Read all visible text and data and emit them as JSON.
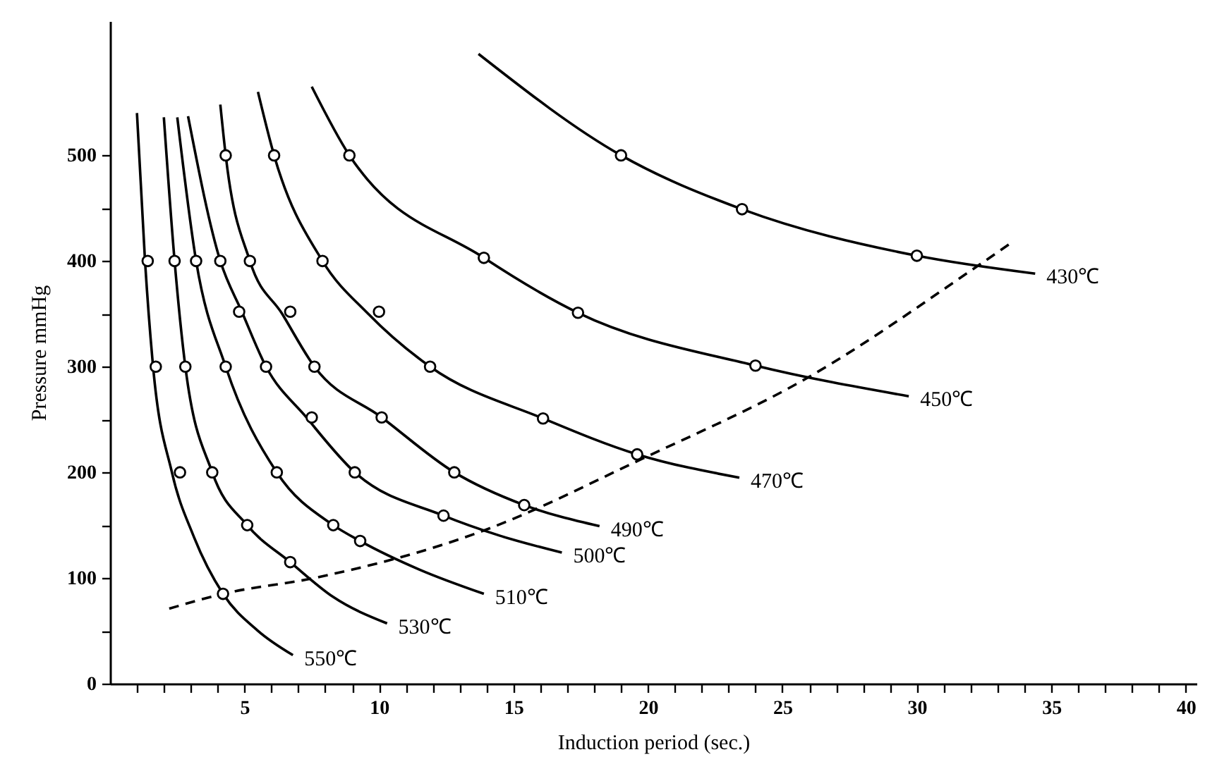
{
  "chart_data": {
    "type": "line",
    "xlabel": "Induction period (sec.)",
    "ylabel": "Pressure mmHg",
    "xlim": [
      0,
      40.4
    ],
    "ylim": [
      0,
      627
    ],
    "xticks": [
      {
        "value": 1,
        "label": null
      },
      {
        "value": 2,
        "label": null
      },
      {
        "value": 3,
        "label": null
      },
      {
        "value": 4,
        "label": null
      },
      5,
      {
        "value": 6,
        "label": null
      },
      {
        "value": 7,
        "label": null
      },
      {
        "value": 8,
        "label": null
      },
      {
        "value": 9,
        "label": null
      },
      10,
      {
        "value": 11,
        "label": null
      },
      {
        "value": 12,
        "label": null
      },
      {
        "value": 13,
        "label": null
      },
      {
        "value": 14,
        "label": null
      },
      15,
      {
        "value": 16,
        "label": null
      },
      {
        "value": 17,
        "label": null
      },
      {
        "value": 18,
        "label": null
      },
      {
        "value": 19,
        "label": null
      },
      20,
      {
        "value": 21,
        "label": null
      },
      {
        "value": 22,
        "label": null
      },
      {
        "value": 23,
        "label": null
      },
      {
        "value": 24,
        "label": null
      },
      25,
      {
        "value": 26,
        "label": null
      },
      {
        "value": 27,
        "label": null
      },
      {
        "value": 28,
        "label": null
      },
      {
        "value": 29,
        "label": null
      },
      30,
      {
        "value": 31,
        "label": null
      },
      {
        "value": 32,
        "label": null
      },
      {
        "value": 33,
        "label": null
      },
      {
        "value": 34,
        "label": null
      },
      35,
      {
        "value": 36,
        "label": null
      },
      {
        "value": 37,
        "label": null
      },
      {
        "value": 38,
        "label": null
      },
      {
        "value": 39,
        "label": null
      },
      40
    ],
    "yticks": [
      0,
      {
        "value": 50,
        "label": null
      },
      100,
      {
        "value": 150,
        "label": null
      },
      200,
      {
        "value": 250,
        "label": null
      },
      300,
      {
        "value": 350,
        "label": null
      },
      400,
      {
        "value": 450,
        "label": null
      },
      500
    ],
    "series": [
      {
        "name": "550℃",
        "color": "#000000",
        "x": [
          1.0,
          1.3,
          1.6,
          2.3,
          3.1,
          4.2,
          5.5,
          6.8
        ],
        "values": [
          540,
          400,
          300,
          200,
          140,
          85,
          50,
          27
        ]
      },
      {
        "name": "530℃",
        "color": "#000000",
        "x": [
          2.0,
          2.4,
          2.8,
          3.8,
          5.1,
          6.7,
          8.3,
          10.3
        ],
        "values": [
          536,
          400,
          300,
          200,
          150,
          115,
          82,
          57
        ]
      },
      {
        "name": "510℃",
        "color": "#000000",
        "x": [
          2.5,
          3.2,
          4.3,
          6.2,
          8.3,
          9.3,
          11.5,
          13.9
        ],
        "values": [
          536,
          400,
          300,
          200,
          150,
          135,
          108,
          85
        ]
      },
      {
        "name": "500℃",
        "color": "#000000",
        "x": [
          2.9,
          4.1,
          4.9,
          5.8,
          7.3,
          9.1,
          12.4,
          14.5,
          16.8
        ],
        "values": [
          537,
          400,
          352,
          300,
          252,
          200,
          159,
          140,
          124
        ]
      },
      {
        "name": "490℃",
        "color": "#000000",
        "x": [
          4.1,
          4.3,
          5.2,
          6.4,
          7.6,
          10.1,
          12.8,
          15.4,
          18.2
        ],
        "values": [
          548,
          500,
          400,
          350,
          300,
          252,
          200,
          169,
          149
        ]
      },
      {
        "name": "470℃",
        "color": "#000000",
        "x": [
          5.5,
          6.1,
          7.9,
          9.6,
          11.9,
          16.1,
          19.6,
          23.4
        ],
        "values": [
          560,
          500,
          400,
          350,
          300,
          251,
          217,
          195
        ]
      },
      {
        "name": "450℃",
        "color": "#000000",
        "x": [
          7.5,
          8.9,
          13.9,
          17.4,
          24.0,
          29.7
        ],
        "values": [
          565,
          500,
          403,
          351,
          301,
          272
        ]
      },
      {
        "name": "430℃",
        "color": "#000000",
        "x": [
          13.7,
          19.0,
          23.5,
          30.0,
          34.4
        ],
        "values": [
          596,
          500,
          449,
          405,
          388
        ]
      },
      {
        "type": "line",
        "line_style": "dashed",
        "color": "#000000",
        "x": [
          2.2,
          4.2,
          7.6,
          13.8,
          19.8,
          25.9,
          32.3,
          33.5
        ],
        "values": [
          71,
          85,
          100,
          144,
          213,
          289,
          396,
          417
        ]
      },
      {
        "type": "scatter",
        "marker": "circle",
        "color": "#000000",
        "x": [
          1.4,
          1.7,
          2.6,
          4.2,
          2.4,
          2.8,
          3.8,
          5.1,
          6.7,
          3.2,
          4.3,
          6.2,
          8.3,
          9.3,
          4.1,
          4.8,
          5.8,
          7.5,
          9.1,
          12.4,
          4.3,
          5.2,
          6.7,
          7.6,
          10.1,
          12.8,
          15.4,
          6.1,
          7.9,
          10.0,
          11.9,
          16.1,
          19.6,
          8.9,
          13.9,
          17.4,
          24.0,
          19.0,
          23.5,
          30.0
        ],
        "values": [
          400,
          300,
          200,
          85,
          400,
          300,
          200,
          150,
          115,
          400,
          300,
          200,
          150,
          135,
          400,
          352,
          300,
          252,
          200,
          159,
          500,
          400,
          352,
          300,
          252,
          200,
          169,
          500,
          400,
          352,
          300,
          251,
          217,
          500,
          403,
          351,
          301,
          500,
          449,
          405
        ]
      }
    ]
  }
}
